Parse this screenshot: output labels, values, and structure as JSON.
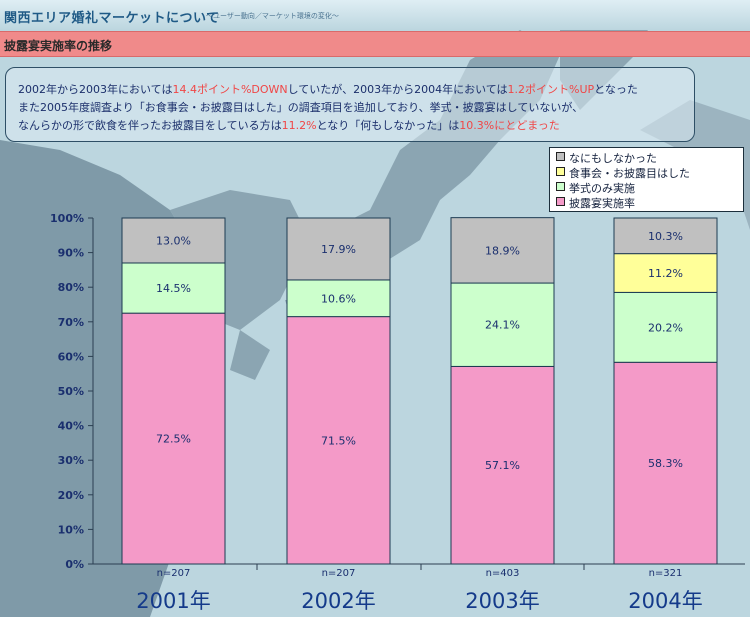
{
  "header": {
    "title": "関西エリア婚礼マーケットについて",
    "subtitle": "〜ユーザー動向／マーケット環境の変化〜"
  },
  "section": {
    "title": "披露宴実施率の推移"
  },
  "summary": {
    "line1_a": "2002年から2003年においては",
    "line1_hl1": "14.4ポイント%DOWN",
    "line1_b": "していたが、2003年から2004年においては",
    "line1_hl2": "1.2ポイント%UP",
    "line1_c": "となった",
    "line2": "また2005年度調査より「お食事会・お披露目はした」の調査項目を追加しており、挙式・披露宴はしていないが、",
    "line3_a": "なんらかの形で飲食を伴ったお披露目をしている方は",
    "line3_hl1": "11.2%",
    "line3_b": "となり「何もしなかった」は",
    "line3_hl2": "10.3%にとどまった"
  },
  "legend": {
    "items": [
      {
        "label": "なにもしなかった",
        "color": "#c0c0c0"
      },
      {
        "label": "食事会・お披露目はした",
        "color": "#ffff99"
      },
      {
        "label": "挙式のみ実施",
        "color": "#ccffcc"
      },
      {
        "label": "披露宴実施率",
        "color": "#f49ac8"
      }
    ]
  },
  "chart_data": {
    "type": "bar",
    "stacked": true,
    "categories": [
      "2001年",
      "2002年",
      "2003年",
      "2004年"
    ],
    "sample_sizes": [
      "n=207",
      "n=207",
      "n=403",
      "n=321"
    ],
    "series": [
      {
        "name": "披露宴実施率",
        "color": "#f49ac8",
        "values": [
          72.5,
          71.5,
          57.1,
          58.3
        ]
      },
      {
        "name": "挙式のみ実施",
        "color": "#ccffcc",
        "values": [
          14.5,
          10.6,
          24.1,
          20.2
        ]
      },
      {
        "name": "食事会・お披露目はした",
        "color": "#ffff99",
        "values": [
          null,
          null,
          null,
          11.2
        ]
      },
      {
        "name": "なにもしなかった",
        "color": "#c0c0c0",
        "values": [
          13.0,
          17.9,
          18.9,
          10.3
        ]
      }
    ],
    "value_labels": [
      [
        "72.5%",
        "71.5%",
        "57.1%",
        "58.3%"
      ],
      [
        "14.5%",
        "10.6%",
        "24.1%",
        "20.2%"
      ],
      [
        "",
        "",
        "",
        "11.2%"
      ],
      [
        "13.0%",
        "17.9%",
        "18.9%",
        "10.3%"
      ]
    ],
    "yticks": [
      "0%",
      "10%",
      "20%",
      "30%",
      "40%",
      "50%",
      "60%",
      "70%",
      "80%",
      "90%",
      "100%"
    ],
    "ylim": [
      0,
      100
    ],
    "legend_position": "top-right",
    "grid": false
  }
}
